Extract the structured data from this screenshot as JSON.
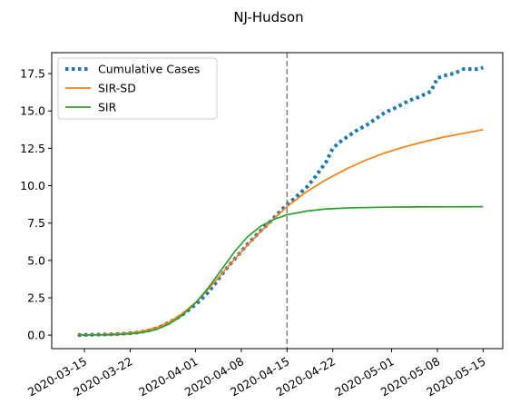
{
  "chart_data": {
    "type": "line",
    "title": "NJ-Hudson",
    "xlabel": "",
    "ylabel": "",
    "x_tick_labels": [
      "2020-03-15",
      "2020-03-22",
      "2020-04-01",
      "2020-04-08",
      "2020-04-15",
      "2020-04-22",
      "2020-05-01",
      "2020-05-08",
      "2020-05-15"
    ],
    "y_tick_labels": [
      "0.0",
      "2.5",
      "5.0",
      "7.5",
      "10.0",
      "12.5",
      "15.0",
      "17.5"
    ],
    "xlim": [
      "2020-03-10",
      "2020-05-18"
    ],
    "ylim": [
      -0.9,
      18.9
    ],
    "grid": false,
    "legend_position": "upper left",
    "vline": {
      "x": "2020-04-15",
      "style": "dashed",
      "color": "#7f7f7f"
    },
    "series": [
      {
        "name": "Cumulative Cases",
        "color": "#1f77b4",
        "style": "dotted",
        "points": [
          [
            "2020-03-14",
            0.01
          ],
          [
            "2020-03-15",
            0.02
          ],
          [
            "2020-03-16",
            0.03
          ],
          [
            "2020-03-17",
            0.04
          ],
          [
            "2020-03-18",
            0.05
          ],
          [
            "2020-03-19",
            0.06
          ],
          [
            "2020-03-20",
            0.08
          ],
          [
            "2020-03-21",
            0.1
          ],
          [
            "2020-03-22",
            0.13
          ],
          [
            "2020-03-23",
            0.17
          ],
          [
            "2020-03-24",
            0.24
          ],
          [
            "2020-03-25",
            0.33
          ],
          [
            "2020-03-26",
            0.46
          ],
          [
            "2020-03-27",
            0.64
          ],
          [
            "2020-03-28",
            0.87
          ],
          [
            "2020-03-29",
            1.1
          ],
          [
            "2020-03-30",
            1.38
          ],
          [
            "2020-03-31",
            1.7
          ],
          [
            "2020-04-01",
            2.05
          ],
          [
            "2020-04-02",
            2.45
          ],
          [
            "2020-04-03",
            2.9
          ],
          [
            "2020-04-04",
            3.45
          ],
          [
            "2020-04-05",
            4.05
          ],
          [
            "2020-04-06",
            4.6
          ],
          [
            "2020-04-07",
            5.1
          ],
          [
            "2020-04-08",
            5.6
          ],
          [
            "2020-04-09",
            6.1
          ],
          [
            "2020-04-10",
            6.55
          ],
          [
            "2020-04-11",
            7.0
          ],
          [
            "2020-04-12",
            7.4
          ],
          [
            "2020-04-13",
            7.85
          ],
          [
            "2020-04-14",
            8.3
          ],
          [
            "2020-04-15",
            8.75
          ],
          [
            "2020-04-16",
            9.1
          ],
          [
            "2020-04-17",
            9.5
          ],
          [
            "2020-04-18",
            9.9
          ],
          [
            "2020-04-19",
            10.4
          ],
          [
            "2020-04-20",
            11.0
          ],
          [
            "2020-04-21",
            11.6
          ],
          [
            "2020-04-22",
            12.5
          ],
          [
            "2020-04-23",
            12.9
          ],
          [
            "2020-04-24",
            13.2
          ],
          [
            "2020-04-25",
            13.5
          ],
          [
            "2020-04-26",
            13.8
          ],
          [
            "2020-04-27",
            14.0
          ],
          [
            "2020-04-28",
            14.3
          ],
          [
            "2020-04-29",
            14.6
          ],
          [
            "2020-04-30",
            14.9
          ],
          [
            "2020-05-01",
            15.1
          ],
          [
            "2020-05-02",
            15.3
          ],
          [
            "2020-05-03",
            15.55
          ],
          [
            "2020-05-04",
            15.75
          ],
          [
            "2020-05-05",
            15.9
          ],
          [
            "2020-05-06",
            16.1
          ],
          [
            "2020-05-07",
            16.3
          ],
          [
            "2020-05-08",
            17.2
          ],
          [
            "2020-05-09",
            17.35
          ],
          [
            "2020-05-10",
            17.45
          ],
          [
            "2020-05-11",
            17.6
          ],
          [
            "2020-05-12",
            17.8
          ],
          [
            "2020-05-13",
            17.8
          ],
          [
            "2020-05-14",
            17.8
          ],
          [
            "2020-05-15",
            17.9
          ]
        ]
      },
      {
        "name": "SIR-SD",
        "color": "#ff7f0e",
        "style": "solid",
        "points": [
          [
            "2020-03-14",
            0.02
          ],
          [
            "2020-03-16",
            0.03
          ],
          [
            "2020-03-18",
            0.05
          ],
          [
            "2020-03-20",
            0.09
          ],
          [
            "2020-03-22",
            0.15
          ],
          [
            "2020-03-24",
            0.27
          ],
          [
            "2020-03-26",
            0.5
          ],
          [
            "2020-03-28",
            0.88
          ],
          [
            "2020-03-30",
            1.45
          ],
          [
            "2020-04-01",
            2.2
          ],
          [
            "2020-04-03",
            3.1
          ],
          [
            "2020-04-05",
            4.1
          ],
          [
            "2020-04-07",
            5.1
          ],
          [
            "2020-04-09",
            6.05
          ],
          [
            "2020-04-11",
            6.95
          ],
          [
            "2020-04-13",
            7.8
          ],
          [
            "2020-04-15",
            8.6
          ],
          [
            "2020-04-18",
            9.6
          ],
          [
            "2020-04-21",
            10.4
          ],
          [
            "2020-04-24",
            11.1
          ],
          [
            "2020-04-27",
            11.7
          ],
          [
            "2020-04-30",
            12.2
          ],
          [
            "2020-05-03",
            12.6
          ],
          [
            "2020-05-06",
            12.95
          ],
          [
            "2020-05-09",
            13.25
          ],
          [
            "2020-05-12",
            13.5
          ],
          [
            "2020-05-15",
            13.75
          ]
        ]
      },
      {
        "name": "SIR",
        "color": "#2ca02c",
        "style": "solid",
        "points": [
          [
            "2020-03-14",
            0.0
          ],
          [
            "2020-03-16",
            0.01
          ],
          [
            "2020-03-18",
            0.02
          ],
          [
            "2020-03-20",
            0.04
          ],
          [
            "2020-03-22",
            0.09
          ],
          [
            "2020-03-24",
            0.19
          ],
          [
            "2020-03-26",
            0.38
          ],
          [
            "2020-03-28",
            0.75
          ],
          [
            "2020-03-30",
            1.35
          ],
          [
            "2020-04-01",
            2.15
          ],
          [
            "2020-04-03",
            3.2
          ],
          [
            "2020-04-05",
            4.4
          ],
          [
            "2020-04-07",
            5.6
          ],
          [
            "2020-04-09",
            6.6
          ],
          [
            "2020-04-11",
            7.3
          ],
          [
            "2020-04-13",
            7.75
          ],
          [
            "2020-04-15",
            8.05
          ],
          [
            "2020-04-18",
            8.3
          ],
          [
            "2020-04-21",
            8.45
          ],
          [
            "2020-04-25",
            8.52
          ],
          [
            "2020-04-30",
            8.56
          ],
          [
            "2020-05-05",
            8.58
          ],
          [
            "2020-05-10",
            8.59
          ],
          [
            "2020-05-15",
            8.6
          ]
        ]
      }
    ]
  }
}
